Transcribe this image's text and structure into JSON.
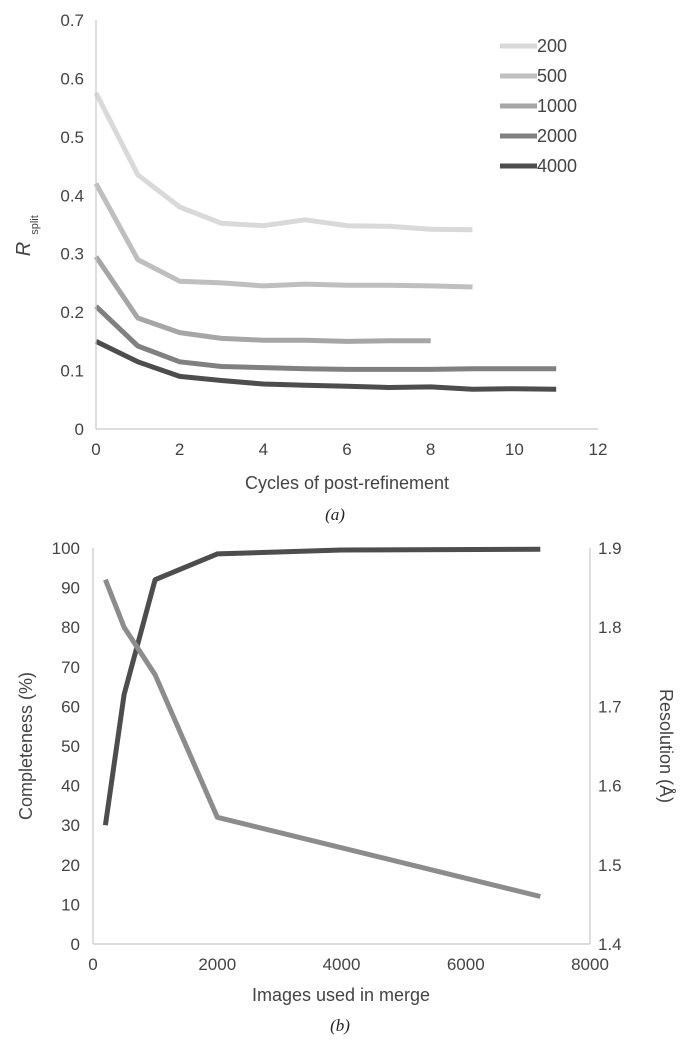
{
  "chart_data": [
    {
      "type": "line",
      "panel_label": "(a)",
      "title": "",
      "xlabel": "Cycles of post-refinement",
      "ylabel_main": "R",
      "ylabel_sub": "split",
      "xlim": [
        0,
        12
      ],
      "ylim": [
        0,
        0.7
      ],
      "x_ticks": [
        "0",
        "2",
        "4",
        "6",
        "8",
        "10",
        "12"
      ],
      "y_ticks": [
        "0",
        "0.1",
        "0.2",
        "0.3",
        "0.4",
        "0.5",
        "0.6",
        "0.7"
      ],
      "grid": false,
      "legend_position": "top-right",
      "series": [
        {
          "name": "200",
          "color": "#d9d9d9",
          "x": [
            0,
            1,
            2,
            3,
            4,
            5,
            6,
            7,
            8,
            9
          ],
          "values": [
            0.575,
            0.435,
            0.38,
            0.352,
            0.348,
            0.358,
            0.348,
            0.347,
            0.342,
            0.341
          ]
        },
        {
          "name": "500",
          "color": "#bfbfbf",
          "x": [
            0,
            1,
            2,
            3,
            4,
            5,
            6,
            7,
            8,
            9
          ],
          "values": [
            0.42,
            0.29,
            0.253,
            0.25,
            0.245,
            0.248,
            0.246,
            0.246,
            0.245,
            0.243
          ]
        },
        {
          "name": "1000",
          "color": "#a6a6a6",
          "x": [
            0,
            1,
            2,
            3,
            4,
            5,
            6,
            7,
            8
          ],
          "values": [
            0.295,
            0.19,
            0.165,
            0.155,
            0.152,
            0.152,
            0.15,
            0.151,
            0.151
          ]
        },
        {
          "name": "2000",
          "color": "#808080",
          "x": [
            0,
            1,
            2,
            3,
            4,
            5,
            6,
            7,
            8,
            9,
            10,
            11
          ],
          "values": [
            0.21,
            0.142,
            0.115,
            0.107,
            0.105,
            0.103,
            0.102,
            0.102,
            0.102,
            0.103,
            0.103,
            0.103
          ]
        },
        {
          "name": "4000",
          "color": "#4d4d4d",
          "x": [
            0,
            1,
            2,
            3,
            4,
            5,
            6,
            7,
            8,
            9,
            10,
            11
          ],
          "values": [
            0.15,
            0.115,
            0.09,
            0.083,
            0.077,
            0.075,
            0.073,
            0.071,
            0.072,
            0.068,
            0.069,
            0.068
          ]
        }
      ]
    },
    {
      "type": "line",
      "panel_label": "(b)",
      "title": "",
      "xlabel": "Images used in merge",
      "ylabel_left": "Completeness (%)",
      "ylabel_right": "Resolution (Å)",
      "xlim": [
        0,
        8000
      ],
      "ylim_left": [
        0,
        100
      ],
      "ylim_right": [
        1.4,
        1.9
      ],
      "x_ticks": [
        "0",
        "2000",
        "4000",
        "6000",
        "8000"
      ],
      "y_ticks_left": [
        "0",
        "10",
        "20",
        "30",
        "40",
        "50",
        "60",
        "70",
        "80",
        "90",
        "100"
      ],
      "y_ticks_right": [
        "1.4",
        "1.5",
        "1.6",
        "1.7",
        "1.8",
        "1.9"
      ],
      "grid": false,
      "series": [
        {
          "name": "",
          "axis": "left",
          "color": "#4d4d4d",
          "x": [
            200,
            500,
            1000,
            2000,
            4000,
            7200
          ],
          "values": [
            30,
            63,
            92,
            98.5,
            99.5,
            99.7
          ]
        },
        {
          "name": "",
          "axis": "right",
          "color": "#8c8c8c",
          "x": [
            200,
            500,
            1000,
            2000,
            7200
          ],
          "values": [
            1.86,
            1.8,
            1.74,
            1.56,
            1.46
          ]
        }
      ]
    }
  ]
}
